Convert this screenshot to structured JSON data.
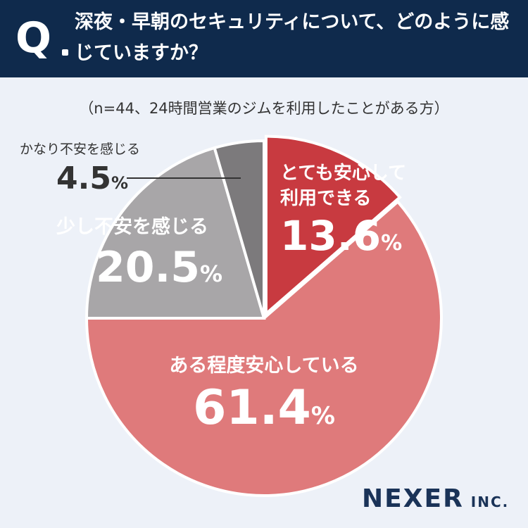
{
  "header": {
    "q_mark": "Q",
    "question": "深夜・早朝のセキュリティについて、どのように感じていますか？",
    "background_color": "#0f2a4c"
  },
  "subtitle": "（n=44、24時間営業のジムを利用したことがある方）",
  "chart_data": {
    "type": "pie",
    "start": "12 o'clock, clockwise",
    "slices": [
      {
        "label_line1": "とても安心して",
        "label_line2": "利用できる",
        "value": 13.6,
        "value_text": "13.6",
        "color": "#c83a40"
      },
      {
        "label_line1": "ある程度安心している",
        "value": 61.4,
        "value_text": "61.4",
        "color": "#df7a7b"
      },
      {
        "label_line1": "少し不安を感じる",
        "value": 20.5,
        "value_text": "20.5",
        "color": "#a8a6a8"
      },
      {
        "label_line1": "かなり不安を感じる",
        "value": 4.5,
        "value_text": "4.5",
        "color": "#7c7a7c"
      }
    ],
    "unit": "%",
    "exploded_slice": "とても安心して利用できる"
  },
  "logo": {
    "main": "NEXER",
    "suffix": "INC."
  }
}
